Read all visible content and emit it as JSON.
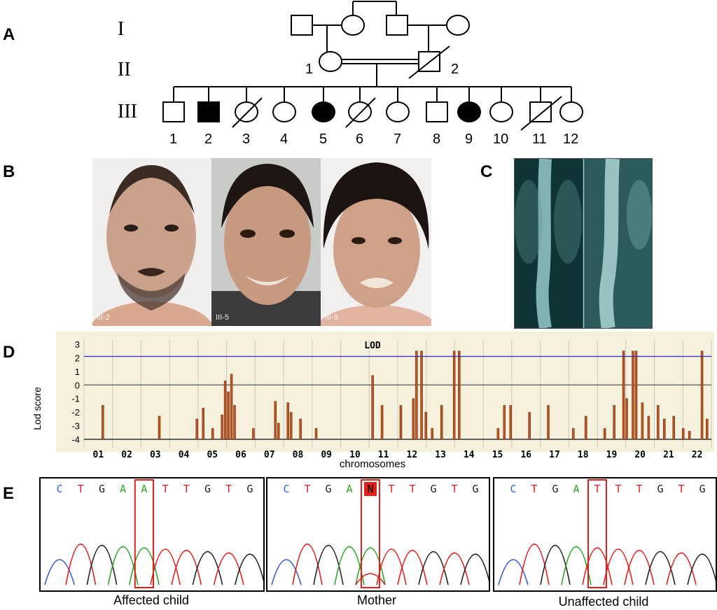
{
  "panels": {
    "a": "A",
    "b": "B",
    "c": "C",
    "d": "D",
    "e": "E"
  },
  "pedigree": {
    "generations": [
      "I",
      "II",
      "III"
    ],
    "gen2_numbers": [
      "1",
      "2"
    ],
    "gen3_numbers": [
      "1",
      "2",
      "3",
      "4",
      "5",
      "6",
      "7",
      "8",
      "9",
      "10",
      "11",
      "12"
    ]
  },
  "photos": {
    "labels": [
      "III-2",
      "III-5",
      "III-9"
    ]
  },
  "chart_data": {
    "type": "line",
    "title": "LOD",
    "xlabel": "chromosomes",
    "ylabel": "Lod score",
    "ylim": [
      -4,
      3
    ],
    "y_ticks": [
      3,
      2,
      1,
      0,
      -1,
      -2,
      -3,
      -4
    ],
    "threshold": 2.1,
    "colors": {
      "bars": "#c0531f",
      "threshold": "#2a2ad0",
      "background": "#f6f1dc"
    },
    "chromosomes": [
      "01",
      "02",
      "03",
      "04",
      "05",
      "06",
      "07",
      "08",
      "09",
      "10",
      "11",
      "12",
      "13",
      "14",
      "15",
      "16",
      "17",
      "18",
      "19",
      "20",
      "21",
      "22"
    ],
    "peaks": [
      {
        "chr": "01",
        "x": 0.03,
        "lod": -1.5
      },
      {
        "chr": "02",
        "x": 0.12,
        "lod": -2.3
      },
      {
        "chr": "02",
        "x": 0.18,
        "lod": -2.5
      },
      {
        "chr": "02",
        "x": 0.19,
        "lod": -1.7
      },
      {
        "chr": "02",
        "x": 0.205,
        "lod": -3.2
      },
      {
        "chr": "03",
        "x": 0.22,
        "lod": -2.2
      },
      {
        "chr": "03",
        "x": 0.225,
        "lod": 0.3
      },
      {
        "chr": "03",
        "x": 0.23,
        "lod": -0.5
      },
      {
        "chr": "03",
        "x": 0.235,
        "lod": 0.8
      },
      {
        "chr": "03",
        "x": 0.24,
        "lod": -1.5
      },
      {
        "chr": "03",
        "x": 0.27,
        "lod": -3.2
      },
      {
        "chr": "04",
        "x": 0.305,
        "lod": -1.2
      },
      {
        "chr": "04",
        "x": 0.31,
        "lod": -2.8
      },
      {
        "chr": "04",
        "x": 0.325,
        "lod": -1.3
      },
      {
        "chr": "04",
        "x": 0.33,
        "lod": -2.0
      },
      {
        "chr": "05",
        "x": 0.345,
        "lod": -2.5
      },
      {
        "chr": "05",
        "x": 0.37,
        "lod": -3.2
      },
      {
        "chr": "06",
        "x": 0.46,
        "lod": 0.7
      },
      {
        "chr": "06",
        "x": 0.475,
        "lod": -1.5
      },
      {
        "chr": "07",
        "x": 0.505,
        "lod": -1.5
      },
      {
        "chr": "08",
        "x": 0.525,
        "lod": -1.0
      },
      {
        "chr": "08",
        "x": 0.53,
        "lod": 2.5
      },
      {
        "chr": "08",
        "x": 0.538,
        "lod": 2.5
      },
      {
        "chr": "08",
        "x": 0.545,
        "lod": -2.0
      },
      {
        "chr": "09",
        "x": 0.555,
        "lod": -3.2
      },
      {
        "chr": "09",
        "x": 0.59,
        "lod": 2.5
      },
      {
        "chr": "09",
        "x": 0.598,
        "lod": 2.5
      },
      {
        "chr": "09",
        "x": 0.57,
        "lod": -1.5
      },
      {
        "chr": "11",
        "x": 0.66,
        "lod": -3.2
      },
      {
        "chr": "11",
        "x": 0.67,
        "lod": -1.5
      },
      {
        "chr": "11",
        "x": 0.68,
        "lod": -1.5
      },
      {
        "chr": "12",
        "x": 0.71,
        "lod": -2.0
      },
      {
        "chr": "12",
        "x": 0.74,
        "lod": -1.5
      },
      {
        "chr": "14",
        "x": 0.78,
        "lod": -3.2
      },
      {
        "chr": "14",
        "x": 0.8,
        "lod": -2.3
      },
      {
        "chr": "15",
        "x": 0.83,
        "lod": -3.2
      },
      {
        "chr": "16",
        "x": 0.845,
        "lod": -1.5
      },
      {
        "chr": "16",
        "x": 0.86,
        "lod": 2.5
      },
      {
        "chr": "16",
        "x": 0.865,
        "lod": -1.0
      },
      {
        "chr": "16",
        "x": 0.875,
        "lod": 2.5
      },
      {
        "chr": "16",
        "x": 0.88,
        "lod": 2.5
      },
      {
        "chr": "17",
        "x": 0.89,
        "lod": -1.3
      },
      {
        "chr": "17",
        "x": 0.9,
        "lod": -2.3
      },
      {
        "chr": "18",
        "x": 0.915,
        "lod": -1.5
      },
      {
        "chr": "18",
        "x": 0.925,
        "lod": -2.5
      },
      {
        "chr": "19",
        "x": 0.94,
        "lod": -2.3
      },
      {
        "chr": "20",
        "x": 0.955,
        "lod": -3.2
      },
      {
        "chr": "21",
        "x": 0.965,
        "lod": -3.4
      },
      {
        "chr": "22",
        "x": 0.985,
        "lod": 2.5
      },
      {
        "chr": "22",
        "x": 0.993,
        "lod": -2.5
      }
    ]
  },
  "chromatograms": [
    {
      "caption": "Affected child",
      "bases": [
        "C",
        "T",
        "G",
        "A",
        "A",
        "T",
        "T",
        "G",
        "T",
        "G"
      ],
      "highlight_index": 4
    },
    {
      "caption": "Mother",
      "bases": [
        "C",
        "T",
        "G",
        "A",
        "N",
        "T",
        "T",
        "G",
        "T",
        "G"
      ],
      "highlight_index": 4
    },
    {
      "caption": "Unaffected child",
      "bases": [
        "C",
        "T",
        "G",
        "A",
        "T",
        "T",
        "T",
        "G",
        "T",
        "G"
      ],
      "highlight_index": 4
    }
  ],
  "base_colors": {
    "A": "#2aa52a",
    "C": "#3a5bd6",
    "G": "#222222",
    "T": "#e02020",
    "N": "#e02020"
  }
}
